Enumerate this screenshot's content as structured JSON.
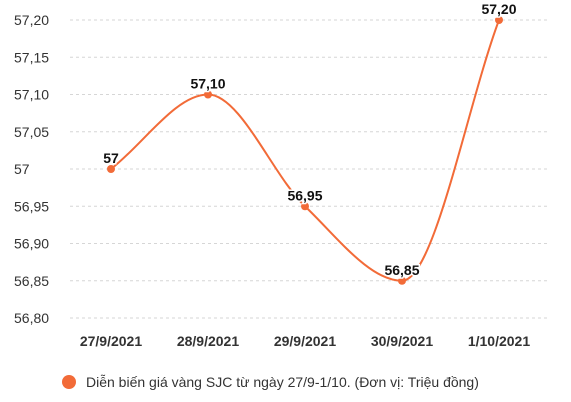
{
  "chart_data": {
    "type": "line",
    "categories": [
      "27/9/2021",
      "28/9/2021",
      "29/9/2021",
      "30/9/2021",
      "1/10/2021"
    ],
    "series": [
      {
        "name": "Diễn biến giá vàng SJC từ ngày 27/9-1/10. (Đơn vị: Triệu đồng)",
        "values": [
          57,
          57.1,
          56.95,
          56.85,
          57.2
        ],
        "data_labels": [
          "57",
          "57,10",
          "56,95",
          "56,85",
          "57,20"
        ],
        "color": "#f26b38"
      }
    ],
    "y_ticks": [
      {
        "value": 57.2,
        "label": "57,20"
      },
      {
        "value": 57.15,
        "label": "57,15"
      },
      {
        "value": 57.1,
        "label": "57,10"
      },
      {
        "value": 57.05,
        "label": "57,05"
      },
      {
        "value": 57.0,
        "label": "57"
      },
      {
        "value": 56.95,
        "label": "56,95"
      },
      {
        "value": 56.9,
        "label": "56,90"
      },
      {
        "value": 56.85,
        "label": "56,85"
      },
      {
        "value": 56.8,
        "label": "56,80"
      }
    ],
    "ylim": [
      56.8,
      57.2
    ],
    "grid": "horizontal-dashed",
    "legend_position": "bottom",
    "colors": {
      "line": "#f26b38",
      "grid": "#d6d6d6",
      "tick_text": "#333333",
      "data_label": "#111111"
    }
  }
}
